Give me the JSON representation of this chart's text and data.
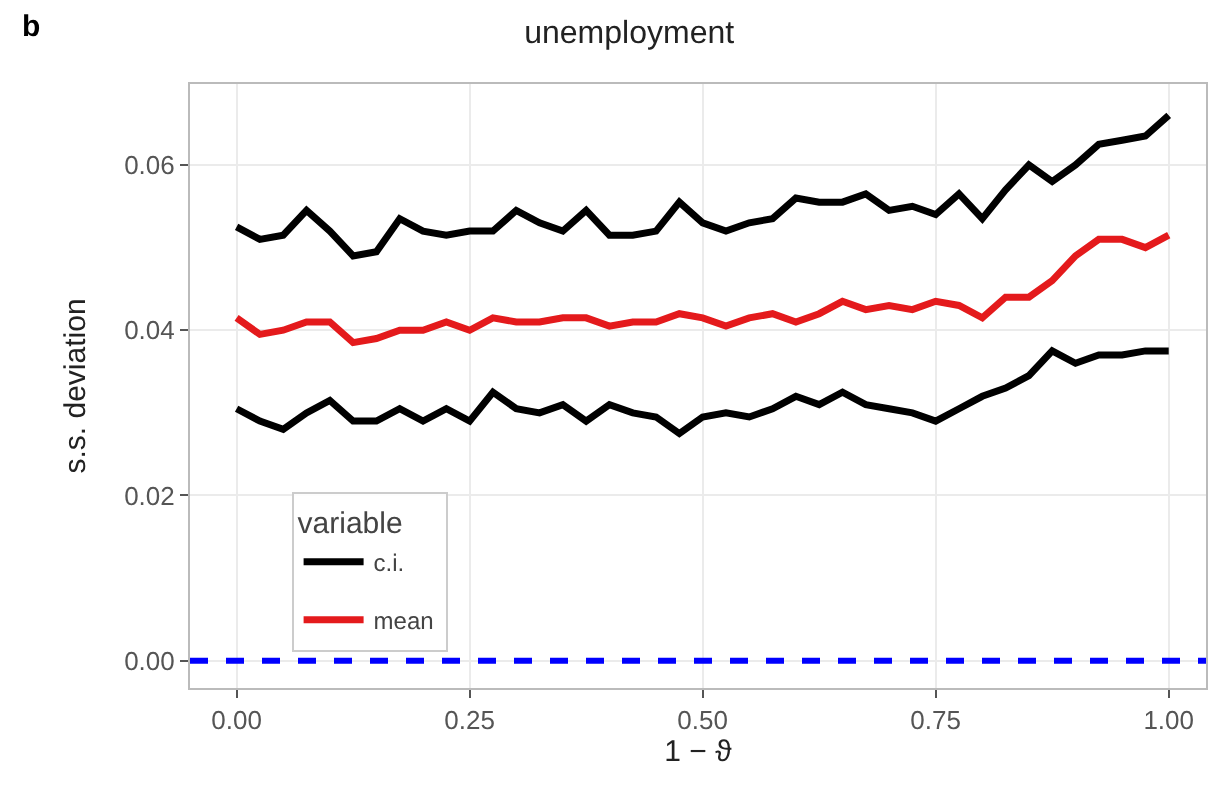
{
  "chart_data": {
    "type": "line",
    "title": "unemployment",
    "xlabel": "1 − ϑ",
    "ylabel": "s.s. deviation",
    "legend_title": "variable",
    "annotations": [
      "b"
    ],
    "x": [
      0,
      0.025,
      0.05,
      0.075,
      0.1,
      0.125,
      0.15,
      0.175,
      0.2,
      0.225,
      0.25,
      0.275,
      0.3,
      0.325,
      0.35,
      0.375,
      0.4,
      0.425,
      0.45,
      0.475,
      0.5,
      0.525,
      0.55,
      0.575,
      0.6,
      0.625,
      0.65,
      0.675,
      0.7,
      0.725,
      0.75,
      0.775,
      0.8,
      0.825,
      0.85,
      0.875,
      0.9,
      0.925,
      0.95,
      0.975,
      1.0
    ],
    "series": [
      {
        "name": "c.i.",
        "color": "#000000",
        "values": [
          0.0525,
          0.051,
          0.0515,
          0.0545,
          0.052,
          0.049,
          0.0495,
          0.0535,
          0.052,
          0.0515,
          0.052,
          0.052,
          0.0545,
          0.053,
          0.052,
          0.0545,
          0.0515,
          0.0515,
          0.052,
          0.0555,
          0.053,
          0.052,
          0.053,
          0.0535,
          0.056,
          0.0555,
          0.0555,
          0.0565,
          0.0545,
          0.055,
          0.054,
          0.0565,
          0.0535,
          0.057,
          0.06,
          0.058,
          0.06,
          0.0625,
          0.063,
          0.0635,
          0.066
        ]
      },
      {
        "color": "#000000",
        "values": [
          0.0305,
          0.029,
          0.028,
          0.03,
          0.0315,
          0.029,
          0.029,
          0.0305,
          0.029,
          0.0305,
          0.029,
          0.0325,
          0.0305,
          0.03,
          0.031,
          0.029,
          0.031,
          0.03,
          0.0295,
          0.0275,
          0.0295,
          0.03,
          0.0295,
          0.0305,
          0.032,
          0.031,
          0.0325,
          0.031,
          0.0305,
          0.03,
          0.029,
          0.0305,
          0.032,
          0.033,
          0.0345,
          0.0375,
          0.036,
          0.037,
          0.037,
          0.0375,
          0.0375
        ]
      },
      {
        "name": "mean",
        "color": "#e41a1c",
        "values": [
          0.0415,
          0.0395,
          0.04,
          0.041,
          0.041,
          0.0385,
          0.039,
          0.04,
          0.04,
          0.041,
          0.04,
          0.0415,
          0.041,
          0.041,
          0.0415,
          0.0415,
          0.0405,
          0.041,
          0.041,
          0.042,
          0.0415,
          0.0405,
          0.0415,
          0.042,
          0.041,
          0.042,
          0.0435,
          0.0425,
          0.043,
          0.0425,
          0.0435,
          0.043,
          0.0415,
          0.044,
          0.044,
          0.046,
          0.049,
          0.051,
          0.051,
          0.05,
          0.0515
        ]
      }
    ],
    "ref_lines": [
      {
        "axis": "y",
        "value": 0,
        "color": "#0000ff",
        "line_style": "dashed"
      }
    ],
    "xlim": [
      -0.05,
      1.04
    ],
    "ylim": [
      -0.0033,
      0.0698
    ],
    "xticks": [
      {
        "value": 0,
        "label": "0.00"
      },
      {
        "value": 0.25,
        "label": "0.25"
      },
      {
        "value": 0.5,
        "label": "0.50"
      },
      {
        "value": 0.75,
        "label": "0.75"
      },
      {
        "value": 1.0,
        "label": "1.00"
      }
    ],
    "yticks": [
      {
        "value": 0,
        "label": "0.00"
      },
      {
        "value": 0.02,
        "label": "0.02"
      },
      {
        "value": 0.04,
        "label": "0.04"
      },
      {
        "value": 0.06,
        "label": "0.06"
      }
    ],
    "grid": true,
    "legend": "bottom left",
    "marker": "none",
    "line_style": "solid"
  }
}
